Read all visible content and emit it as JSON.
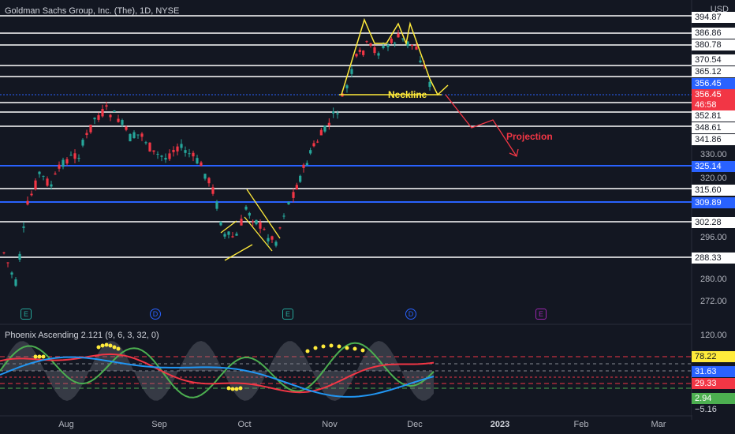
{
  "header": {
    "title": "Goldman Sachs Group, Inc. (The), 1D, NYSE",
    "currency": "USD"
  },
  "indicator": {
    "label": "Phoenix Ascending 2.121 (9, 6, 3, 32, 0)"
  },
  "price_axis": {
    "ticks": [
      "330.00",
      "320.00",
      "296.00",
      "280.00",
      "272.00"
    ],
    "level_boxes": [
      {
        "label": "394.87",
        "style": "white"
      },
      {
        "label": "386.86",
        "style": "white"
      },
      {
        "label": "380.78",
        "style": "white"
      },
      {
        "label": "370.54",
        "style": "white"
      },
      {
        "label": "365.12",
        "style": "white"
      },
      {
        "label": "356.45",
        "style": "blue"
      },
      {
        "label": "356.45",
        "style": "red"
      },
      {
        "label": "46:58",
        "style": "red"
      },
      {
        "label": "352.81",
        "style": "white"
      },
      {
        "label": "348.61",
        "style": "white"
      },
      {
        "label": "341.86",
        "style": "white"
      },
      {
        "label": "325.14",
        "style": "blue"
      },
      {
        "label": "315.60",
        "style": "white"
      },
      {
        "label": "309.89",
        "style": "blue"
      },
      {
        "label": "302.28",
        "style": "white"
      },
      {
        "label": "288.33",
        "style": "white"
      }
    ]
  },
  "indicator_axis": {
    "ticks": [
      "120.00"
    ],
    "boxes": [
      {
        "label": "78.22",
        "style": "yellow"
      },
      {
        "label": "31.63",
        "style": "blue"
      },
      {
        "label": "29.33",
        "style": "red"
      },
      {
        "label": "2.94",
        "style": "green"
      },
      {
        "label": "−5.16",
        "style": "dark"
      }
    ]
  },
  "time_axis": [
    "Aug",
    "Sep",
    "Oct",
    "Nov",
    "Dec",
    "2023",
    "Feb",
    "Mar"
  ],
  "events": [
    {
      "letter": "E",
      "kind": "earnings"
    },
    {
      "letter": "D",
      "kind": "dividend"
    },
    {
      "letter": "E",
      "kind": "earnings"
    },
    {
      "letter": "D",
      "kind": "dividend"
    },
    {
      "letter": "E",
      "kind": "upcoming"
    }
  ],
  "annotations": {
    "neckline": "Neckline",
    "projection": "Projection"
  },
  "colors": {
    "background": "#131722",
    "up_candle": "#26a69a",
    "down_candle": "#f23645",
    "pattern_lines": "#ffeb3b",
    "projection": "#f23645",
    "support_blue": "#2962ff"
  }
}
